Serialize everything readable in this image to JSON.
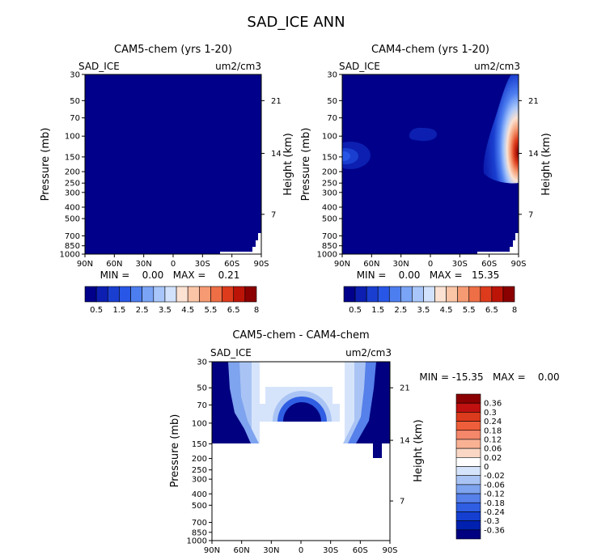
{
  "page_title": "SAD_ICE ANN",
  "colors": {
    "dark_navy": "#000080",
    "white": "#ffffff",
    "pos_scale": [
      "#00008a",
      "#0c1fb0",
      "#1a3fd0",
      "#2856e6",
      "#4d7ef0",
      "#7aa4f6",
      "#a8c6fa",
      "#d2e2fd",
      "#fbe2d2",
      "#fac4a6",
      "#f59a72",
      "#ee6e45",
      "#dd3b1c",
      "#bd1408",
      "#8b0000"
    ],
    "diff_scale": [
      "#8b0000",
      "#c01010",
      "#dc3a1c",
      "#ee5e3a",
      "#f5876a",
      "#f9b194",
      "#fad7c4",
      "#ffffff",
      "#d6e4fb",
      "#a9c4f4",
      "#7ea3ef",
      "#5680ea",
      "#2f5ee3",
      "#143fd0",
      "#0020b0",
      "#000080"
    ]
  },
  "chart_data": [
    {
      "type": "heatmap",
      "title": "CAM5-chem (yrs 1-20)",
      "left_label": "SAD_ICE",
      "right_label": "um2/cm3",
      "xlabel": "",
      "ylabel": "Pressure (mb)",
      "ylabel_right": "Height (km)",
      "x_ticks": [
        "90N",
        "60N",
        "30N",
        "0",
        "30S",
        "60S",
        "90S"
      ],
      "x_values": [
        90,
        60,
        30,
        0,
        -30,
        -60,
        -90
      ],
      "y_ticks": [
        "30",
        "50",
        "70",
        "100",
        "150",
        "200",
        "250",
        "300",
        "400",
        "500",
        "700",
        "850",
        "1000"
      ],
      "y_values": [
        30,
        50,
        70,
        100,
        150,
        200,
        250,
        300,
        400,
        500,
        700,
        850,
        1000
      ],
      "y_scale": "log",
      "ylim": [
        1000,
        30
      ],
      "height_ticks": [
        "21",
        "14",
        "7"
      ],
      "height_values_mb": [
        50,
        140,
        460
      ],
      "stats": "MIN =    0.00   MAX =    0.21",
      "min": 0.0,
      "max": 0.21,
      "colorbar_labels": [
        "0.5",
        "1.5",
        "2.5",
        "3.5",
        "4.5",
        "5.5",
        "6.5",
        "8"
      ],
      "features": "uniform lowest level everywhere; blank area near 70S-90S at the surface"
    },
    {
      "type": "heatmap",
      "title": "CAM4-chem (yrs 1-20)",
      "left_label": "SAD_ICE",
      "right_label": "um2/cm3",
      "xlabel": "",
      "ylabel": "Pressure (mb)",
      "ylabel_right": "Height (km)",
      "x_ticks": [
        "90N",
        "60N",
        "30N",
        "0",
        "30S",
        "60S",
        "90S"
      ],
      "x_values": [
        90,
        60,
        30,
        0,
        -30,
        -60,
        -90
      ],
      "y_ticks": [
        "30",
        "50",
        "70",
        "100",
        "150",
        "200",
        "250",
        "300",
        "400",
        "500",
        "700",
        "850",
        "1000"
      ],
      "y_values": [
        30,
        50,
        70,
        100,
        150,
        200,
        250,
        300,
        400,
        500,
        700,
        850,
        1000
      ],
      "y_scale": "log",
      "ylim": [
        1000,
        30
      ],
      "height_ticks": [
        "21",
        "14",
        "7"
      ],
      "height_values_mb": [
        50,
        140,
        460
      ],
      "stats": "MIN =    0.00   MAX =   15.35",
      "min": 0.0,
      "max": 15.35,
      "colorbar_labels": [
        "0.5",
        "1.5",
        "2.5",
        "3.5",
        "4.5",
        "5.5",
        "6.5",
        "8"
      ],
      "features": "maximum near 80S-90S around 150 mb; weak blobs near 90N 150 mb and 15N 100 mb"
    },
    {
      "type": "heatmap",
      "title": "CAM5-chem - CAM4-chem",
      "left_label": "SAD_ICE",
      "right_label": "um2/cm3",
      "xlabel": "",
      "ylabel": "Pressure (mb)",
      "ylabel_right": "Height (km)",
      "x_ticks": [
        "90N",
        "60N",
        "30N",
        "0",
        "30S",
        "60S",
        "90S"
      ],
      "x_values": [
        90,
        60,
        30,
        0,
        -30,
        -60,
        -90
      ],
      "y_ticks": [
        "30",
        "50",
        "70",
        "100",
        "150",
        "200",
        "250",
        "300",
        "400",
        "500",
        "700",
        "850",
        "1000"
      ],
      "y_values": [
        30,
        50,
        70,
        100,
        150,
        200,
        250,
        300,
        400,
        500,
        700,
        850,
        1000
      ],
      "y_scale": "log",
      "ylim": [
        1000,
        30
      ],
      "height_ticks": [
        "21",
        "14",
        "7"
      ],
      "height_values_mb": [
        50,
        140,
        460
      ],
      "stats": "MIN = -15.35   MAX =    0.00",
      "min": -15.35,
      "max": 0.0,
      "colorbar_labels": [
        "0.36",
        "0.3",
        "0.24",
        "0.18",
        "0.12",
        "0.06",
        "0.02",
        "0",
        "-0.02",
        "-0.06",
        "-0.12",
        "-0.18",
        "-0.24",
        "-0.3",
        "-0.36"
      ],
      "features": "negative values poleward of 60 degrees above 150 mb and a dome over the equator near 70-100 mb; blank below 150 mb"
    }
  ]
}
